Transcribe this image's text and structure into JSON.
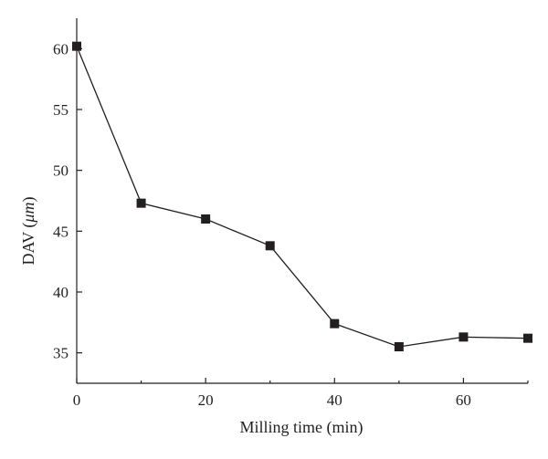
{
  "chart_data": {
    "type": "line",
    "title": "",
    "xlabel": "Milling time (min)",
    "ylabel_main": "DAV (",
    "ylabel_unit": "μm",
    "ylabel_close": ")",
    "xlim": [
      0,
      70
    ],
    "ylim": [
      32.5,
      62.5
    ],
    "x_ticks": [
      0,
      20,
      40,
      60
    ],
    "x_minor_ticks": [
      10,
      30,
      50,
      70
    ],
    "y_ticks": [
      35,
      40,
      45,
      50,
      55,
      60
    ],
    "grid": false,
    "marker": "square",
    "color": "#231f20",
    "series": [
      {
        "x": [
          0,
          10,
          20,
          30,
          40,
          50,
          60,
          70
        ],
        "y": [
          60.2,
          47.3,
          46.0,
          43.8,
          37.4,
          35.5,
          36.3,
          36.2
        ]
      }
    ]
  }
}
